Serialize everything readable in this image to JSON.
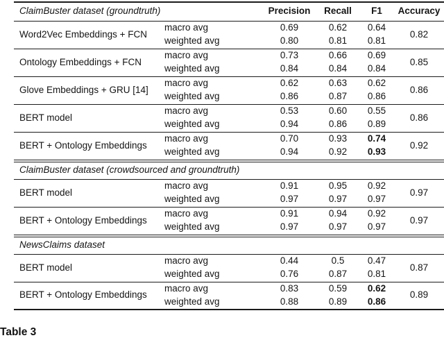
{
  "colors": {
    "background": "#ffffff",
    "text": "#141414",
    "rule": "#1a1a1a"
  },
  "table": {
    "caption": "Table 3",
    "columns": [
      "Precision",
      "Recall",
      "F1",
      "Accuracy"
    ],
    "sections": [
      {
        "title": "ClaimBuster dataset (groundtruth)",
        "groups": [
          {
            "model": "Word2Vec Embeddings + FCN",
            "accuracy": "0.82",
            "rows": [
              {
                "avg": "macro avg",
                "precision": "0.69",
                "recall": "0.62",
                "f1": "0.64",
                "f1_bold": false
              },
              {
                "avg": "weighted avg",
                "precision": "0.80",
                "recall": "0.81",
                "f1": "0.81",
                "f1_bold": false
              }
            ]
          },
          {
            "model": "Ontology Embeddings + FCN",
            "accuracy": "0.85",
            "rows": [
              {
                "avg": "macro avg",
                "precision": "0.73",
                "recall": "0.66",
                "f1": "0.69",
                "f1_bold": false
              },
              {
                "avg": "weighted avg",
                "precision": "0.84",
                "recall": "0.84",
                "f1": "0.84",
                "f1_bold": false
              }
            ]
          },
          {
            "model": "Glove Embeddings + GRU [14]",
            "accuracy": "0.86",
            "rows": [
              {
                "avg": "macro avg",
                "precision": "0.62",
                "recall": "0.63",
                "f1": "0.62",
                "f1_bold": false
              },
              {
                "avg": "weighted avg",
                "precision": "0.86",
                "recall": "0.87",
                "f1": "0.86",
                "f1_bold": false
              }
            ]
          },
          {
            "model": "BERT model",
            "accuracy": "0.86",
            "rows": [
              {
                "avg": "macro avg",
                "precision": "0.53",
                "recall": "0.60",
                "f1": "0.55",
                "f1_bold": false
              },
              {
                "avg": "weighted avg",
                "precision": "0.94",
                "recall": "0.86",
                "f1": "0.89",
                "f1_bold": false
              }
            ]
          },
          {
            "model": "BERT + Ontology Embeddings",
            "accuracy": "0.92",
            "rows": [
              {
                "avg": "macro avg",
                "precision": "0.70",
                "recall": "0.93",
                "f1": "0.74",
                "f1_bold": true
              },
              {
                "avg": "weighted avg",
                "precision": "0.94",
                "recall": "0.92",
                "f1": "0.93",
                "f1_bold": true
              }
            ]
          }
        ]
      },
      {
        "title": "ClaimBuster dataset (crowdsourced and groundtruth)",
        "groups": [
          {
            "model": "BERT model",
            "accuracy": "0.97",
            "rows": [
              {
                "avg": "macro avg",
                "precision": "0.91",
                "recall": "0.95",
                "f1": "0.92",
                "f1_bold": false
              },
              {
                "avg": "weighted avg",
                "precision": "0.97",
                "recall": "0.97",
                "f1": "0.97",
                "f1_bold": false
              }
            ]
          },
          {
            "model": "BERT + Ontology Embeddings",
            "accuracy": "0.97",
            "rows": [
              {
                "avg": "macro avg",
                "precision": "0.91",
                "recall": "0.94",
                "f1": "0.92",
                "f1_bold": false
              },
              {
                "avg": "weighted avg",
                "precision": "0.97",
                "recall": "0.97",
                "f1": "0.97",
                "f1_bold": false
              }
            ]
          }
        ]
      },
      {
        "title": "NewsClaims dataset",
        "groups": [
          {
            "model": "BERT model",
            "accuracy": "0.87",
            "rows": [
              {
                "avg": "macro avg",
                "precision": "0.44",
                "recall": "0.5",
                "f1": "0.47",
                "f1_bold": false
              },
              {
                "avg": "weighted avg",
                "precision": "0.76",
                "recall": "0.87",
                "f1": "0.81",
                "f1_bold": false
              }
            ]
          },
          {
            "model": "BERT + Ontology Embeddings",
            "accuracy": "0.89",
            "rows": [
              {
                "avg": "macro avg",
                "precision": "0.83",
                "recall": "0.59",
                "f1": "0.62",
                "f1_bold": true
              },
              {
                "avg": "weighted avg",
                "precision": "0.88",
                "recall": "0.89",
                "f1": "0.86",
                "f1_bold": true
              }
            ]
          }
        ]
      }
    ]
  }
}
